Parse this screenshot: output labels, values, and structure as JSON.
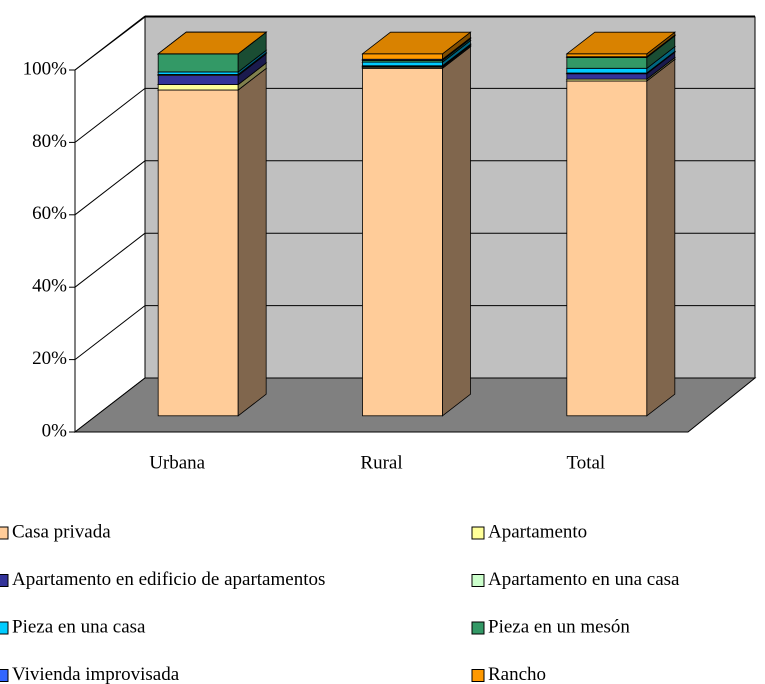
{
  "chart_data": {
    "type": "bar3d_stacked",
    "categories": [
      "Urbana",
      "Rural",
      "Total"
    ],
    "series": [
      {
        "name": "Casa privada",
        "color": "#FFCC99",
        "values": [
          90,
          96,
          92.5
        ]
      },
      {
        "name": "Apartamento",
        "color": "#FFFF99",
        "values": [
          1.5,
          0.3,
          0.5
        ]
      },
      {
        "name": "Apartamento en edificio de apartamentos",
        "color": "#333399",
        "values": [
          2.5,
          0.2,
          1.5
        ]
      },
      {
        "name": "Apartamento en una casa",
        "color": "#CCFFCC",
        "values": [
          0.3,
          0.2,
          0.2
        ]
      },
      {
        "name": "Pieza en una casa",
        "color": "#00CCFF",
        "values": [
          0.7,
          1,
          1.3
        ]
      },
      {
        "name": "Pieza en un mesón",
        "color": "#339966",
        "values": [
          5,
          0.5,
          3
        ]
      },
      {
        "name": "Vivienda improvisada",
        "color": "#3366FF",
        "values": [
          0,
          0.3,
          0.2
        ]
      },
      {
        "name": "Rancho",
        "color": "#FF9900",
        "values": [
          0,
          1.5,
          0.8
        ]
      }
    ],
    "ylim": [
      0,
      100
    ],
    "yticks": [
      {
        "value": 0,
        "label": "0%"
      },
      {
        "value": 20,
        "label": "20%"
      },
      {
        "value": 40,
        "label": "40%"
      },
      {
        "value": 60,
        "label": "60%"
      },
      {
        "value": 80,
        "label": "80%"
      },
      {
        "value": 100,
        "label": "100%"
      }
    ],
    "grid": true
  }
}
